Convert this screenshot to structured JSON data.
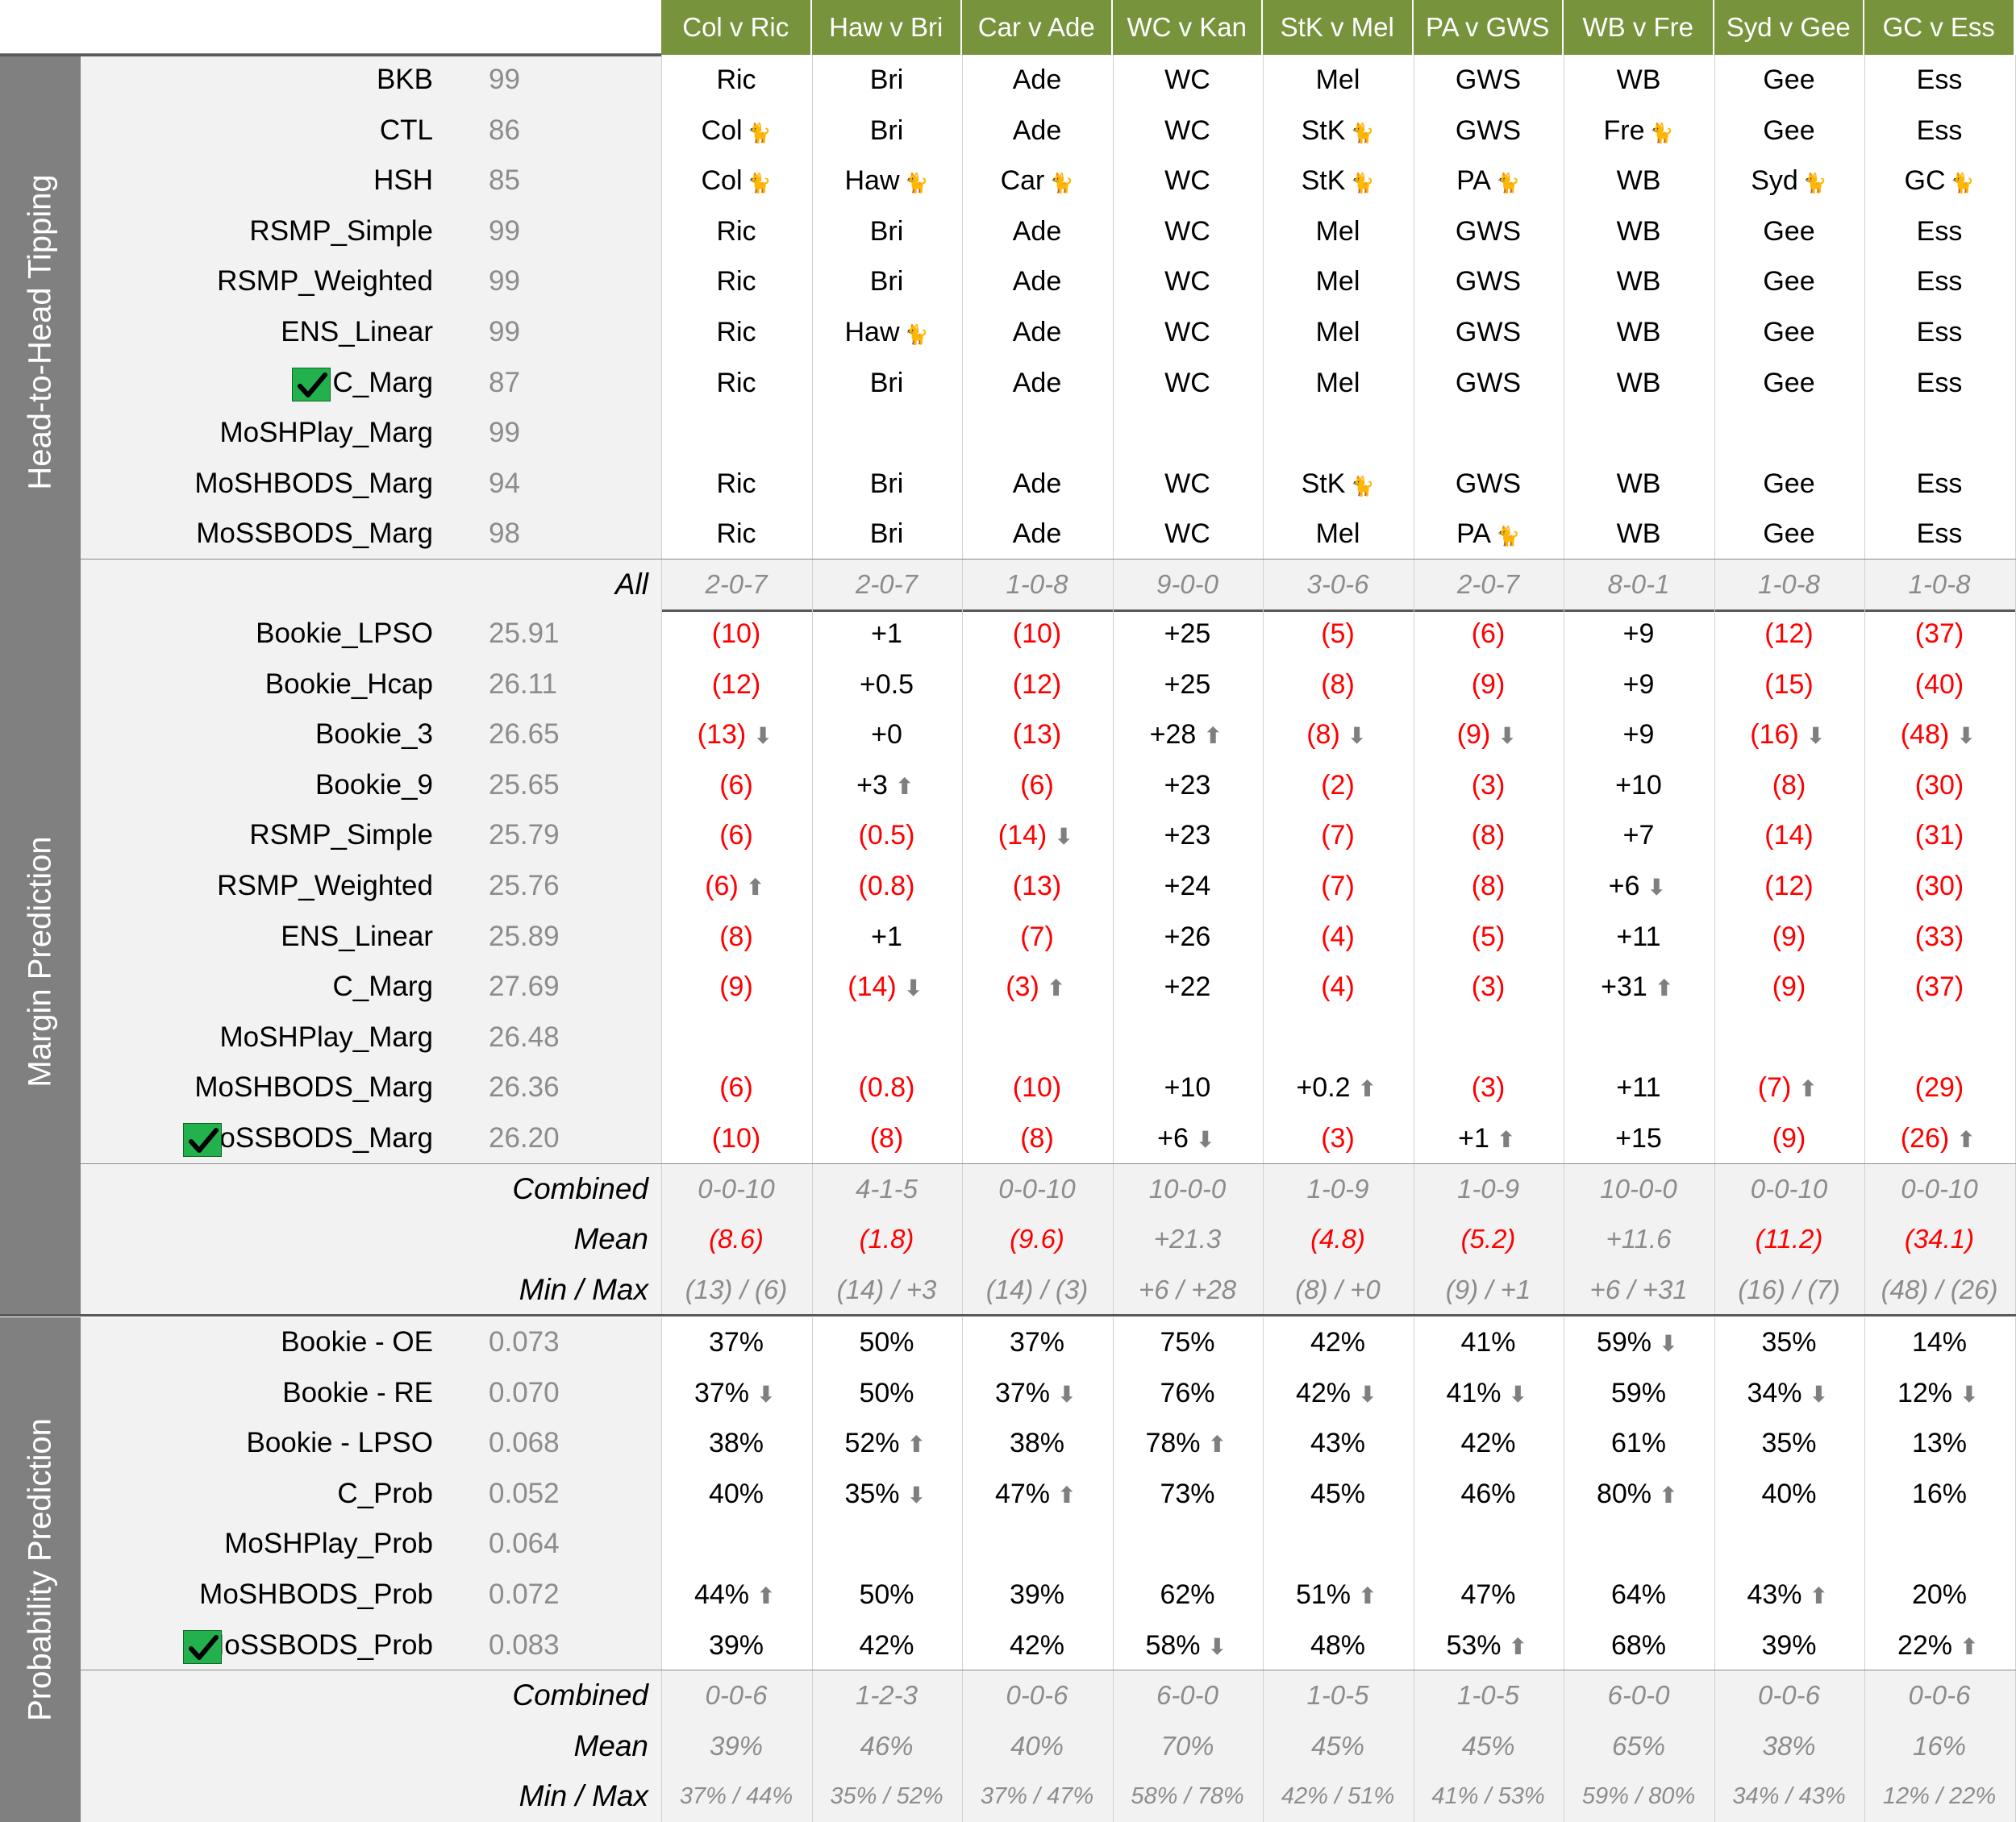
{
  "matches": [
    "Col v Ric",
    "Haw v Bri",
    "Car v Ade",
    "WC v Kan",
    "StK v Mel",
    "PA v GWS",
    "WB v Fre",
    "Syd v Gee",
    "GC v Ess"
  ],
  "sections": {
    "h2h": {
      "title": "Head-to-Head Tipping",
      "rows": [
        {
          "name": "BKB",
          "score": "99",
          "cells": [
            "Ric",
            "Bri",
            "Ade",
            "WC",
            "Mel",
            "GWS",
            "WB",
            "Gee",
            "Ess"
          ]
        },
        {
          "name": "CTL",
          "score": "86",
          "cells": [
            "Col|cat",
            "Bri",
            "Ade",
            "WC",
            "StK|cat",
            "GWS",
            "Fre|cat",
            "Gee",
            "Ess"
          ]
        },
        {
          "name": "HSH",
          "score": "85",
          "cells": [
            "Col|cat",
            "Haw|cat",
            "Car|cat",
            "WC",
            "StK|cat",
            "PA|cat",
            "WB",
            "Syd|cat",
            "GC|cat"
          ]
        },
        {
          "name": "RSMP_Simple",
          "score": "99",
          "cells": [
            "Ric",
            "Bri",
            "Ade",
            "WC",
            "Mel",
            "GWS",
            "WB",
            "Gee",
            "Ess"
          ]
        },
        {
          "name": "RSMP_Weighted",
          "score": "99",
          "cells": [
            "Ric",
            "Bri",
            "Ade",
            "WC",
            "Mel",
            "GWS",
            "WB",
            "Gee",
            "Ess"
          ]
        },
        {
          "name": "ENS_Linear",
          "score": "99",
          "cells": [
            "Ric",
            "Haw|cat",
            "Ade",
            "WC",
            "Mel",
            "GWS",
            "WB",
            "Gee",
            "Ess"
          ]
        },
        {
          "name": "C_Marg",
          "score": "87",
          "check": true,
          "cells": [
            "Ric",
            "Bri",
            "Ade",
            "WC",
            "Mel",
            "GWS",
            "WB",
            "Gee",
            "Ess"
          ]
        },
        {
          "name": "MoSHPlay_Marg",
          "score": "99",
          "cells": [
            "",
            "",
            "",
            "",
            "",
            "",
            "",
            "",
            ""
          ]
        },
        {
          "name": "MoSHBODS_Marg",
          "score": "94",
          "cells": [
            "Ric",
            "Bri",
            "Ade",
            "WC",
            "StK|cat",
            "GWS",
            "WB",
            "Gee",
            "Ess"
          ]
        },
        {
          "name": "MoSSBODS_Marg",
          "score": "98",
          "cells": [
            "Ric",
            "Bri",
            "Ade",
            "WC",
            "Mel",
            "PA|cat",
            "WB",
            "Gee",
            "Ess"
          ]
        }
      ],
      "summary": [
        {
          "label": "All",
          "cells": [
            "2-0-7",
            "2-0-7",
            "1-0-8",
            "9-0-0",
            "3-0-6",
            "2-0-7",
            "8-0-1",
            "1-0-8",
            "1-0-8"
          ]
        }
      ]
    },
    "margin": {
      "title": "Margin Prediction",
      "rows": [
        {
          "name": "Bookie_LPSO",
          "score": "25.91",
          "cells": [
            "(10)",
            "+1",
            "(10)",
            "+25",
            "(5)",
            "(6)",
            "+9",
            "(12)",
            "(37)"
          ]
        },
        {
          "name": "Bookie_Hcap",
          "score": "26.11",
          "cells": [
            "(12)",
            "+0.5",
            "(12)",
            "+25",
            "(8)",
            "(9)",
            "+9",
            "(15)",
            "(40)"
          ]
        },
        {
          "name": "Bookie_3",
          "score": "26.65",
          "cells": [
            "(13)|down",
            "+0",
            "(13)",
            "+28|up",
            "(8)|down",
            "(9)|down",
            "+9",
            "(16)|down",
            "(48)|down"
          ]
        },
        {
          "name": "Bookie_9",
          "score": "25.65",
          "cells": [
            "(6)",
            "+3|up",
            "(6)",
            "+23",
            "(2)",
            "(3)",
            "+10",
            "(8)",
            "(30)"
          ]
        },
        {
          "name": "RSMP_Simple",
          "score": "25.79",
          "cells": [
            "(6)",
            "(0.5)",
            "(14)|down",
            "+23",
            "(7)",
            "(8)",
            "+7",
            "(14)",
            "(31)"
          ]
        },
        {
          "name": "RSMP_Weighted",
          "score": "25.76",
          "cells": [
            "(6)|up",
            "(0.8)",
            "(13)",
            "+24",
            "(7)",
            "(8)",
            "+6|down",
            "(12)",
            "(30)"
          ]
        },
        {
          "name": "ENS_Linear",
          "score": "25.89",
          "cells": [
            "(8)",
            "+1",
            "(7)",
            "+26",
            "(4)",
            "(5)",
            "+11",
            "(9)",
            "(33)"
          ]
        },
        {
          "name": "C_Marg",
          "score": "27.69",
          "cells": [
            "(9)",
            "(14)|down",
            "(3)|up",
            "+22",
            "(4)",
            "(3)",
            "+31|up",
            "(9)",
            "(37)"
          ]
        },
        {
          "name": "MoSHPlay_Marg",
          "score": "26.48",
          "cells": [
            "",
            "",
            "",
            "",
            "",
            "",
            "",
            "",
            ""
          ]
        },
        {
          "name": "MoSHBODS_Marg",
          "score": "26.36",
          "cells": [
            "(6)",
            "(0.8)",
            "(10)",
            "+10",
            "+0.2|up",
            "(3)",
            "+11",
            "(7)|up",
            "(29)"
          ]
        },
        {
          "name": "MoSSBODS_Marg",
          "score": "26.20",
          "check": true,
          "cells": [
            "(10)",
            "(8)",
            "(8)",
            "+6|down",
            "(3)",
            "+1|up",
            "+15",
            "(9)",
            "(26)|up"
          ]
        }
      ],
      "summary": [
        {
          "label": "Combined",
          "cells": [
            "0-0-10",
            "4-1-5",
            "0-0-10",
            "10-0-0",
            "1-0-9",
            "1-0-9",
            "10-0-0",
            "0-0-10",
            "0-0-10"
          ]
        },
        {
          "label": "Mean",
          "cells": [
            "(8.6)",
            "(1.8)",
            "(9.6)",
            "+21.3",
            "(4.8)",
            "(5.2)",
            "+11.6",
            "(11.2)",
            "(34.1)"
          ]
        },
        {
          "label": "Min / Max",
          "cells": [
            "(13) / (6)",
            "(14) / +3",
            "(14) / (3)",
            "+6 / +28",
            "(8) / +0",
            "(9) / +1",
            "+6 / +31",
            "(16) / (7)",
            "(48) / (26)"
          ]
        }
      ]
    },
    "prob": {
      "title": "Probability Prediction",
      "rows": [
        {
          "name": "Bookie - OE",
          "score": "0.073",
          "cells": [
            "37%",
            "50%",
            "37%",
            "75%",
            "42%",
            "41%",
            "59%|down",
            "35%",
            "14%"
          ]
        },
        {
          "name": "Bookie - RE",
          "score": "0.070",
          "cells": [
            "37%|down",
            "50%",
            "37%|down",
            "76%",
            "42%|down",
            "41%|down",
            "59%",
            "34%|down",
            "12%|down"
          ]
        },
        {
          "name": "Bookie - LPSO",
          "score": "0.068",
          "cells": [
            "38%",
            "52%|up",
            "38%",
            "78%|up",
            "43%",
            "42%",
            "61%",
            "35%",
            "13%"
          ]
        },
        {
          "name": "C_Prob",
          "score": "0.052",
          "cells": [
            "40%",
            "35%|down",
            "47%|up",
            "73%",
            "45%",
            "46%",
            "80%|up",
            "40%",
            "16%"
          ]
        },
        {
          "name": "MoSHPlay_Prob",
          "score": "0.064",
          "cells": [
            "",
            "",
            "",
            "",
            "",
            "",
            "",
            "",
            ""
          ]
        },
        {
          "name": "MoSHBODS_Prob",
          "score": "0.072",
          "cells": [
            "44%|up",
            "50%",
            "39%",
            "62%",
            "51%|up",
            "47%",
            "64%",
            "43%|up",
            "20%"
          ]
        },
        {
          "name": "MoSSBODS_Prob",
          "score": "0.083",
          "check": true,
          "cells": [
            "39%",
            "42%",
            "42%",
            "58%|down",
            "48%",
            "53%|up",
            "68%",
            "39%",
            "22%|up"
          ]
        }
      ],
      "summary": [
        {
          "label": "Combined",
          "cells": [
            "0-0-6",
            "1-2-3",
            "0-0-6",
            "6-0-0",
            "1-0-5",
            "1-0-5",
            "6-0-0",
            "0-0-6",
            "0-0-6"
          ]
        },
        {
          "label": "Mean",
          "cells": [
            "39%",
            "46%",
            "40%",
            "70%",
            "45%",
            "45%",
            "65%",
            "38%",
            "16%"
          ]
        },
        {
          "label": "Min / Max",
          "cells": [
            "37% / 44%",
            "35% / 52%",
            "37% / 47%",
            "58% / 78%",
            "42% / 51%",
            "41% / 53%",
            "59% / 80%",
            "34% / 43%",
            "12% / 22%"
          ]
        }
      ]
    }
  },
  "colors": {
    "header": "#77933c",
    "negative": "#ff0000",
    "label_bg": "#808080",
    "muted": "#8c8c8c"
  },
  "icons": {
    "cat": "cat-icon",
    "up": "arrow-up-icon",
    "down": "arrow-down-icon",
    "check": "check-icon"
  }
}
